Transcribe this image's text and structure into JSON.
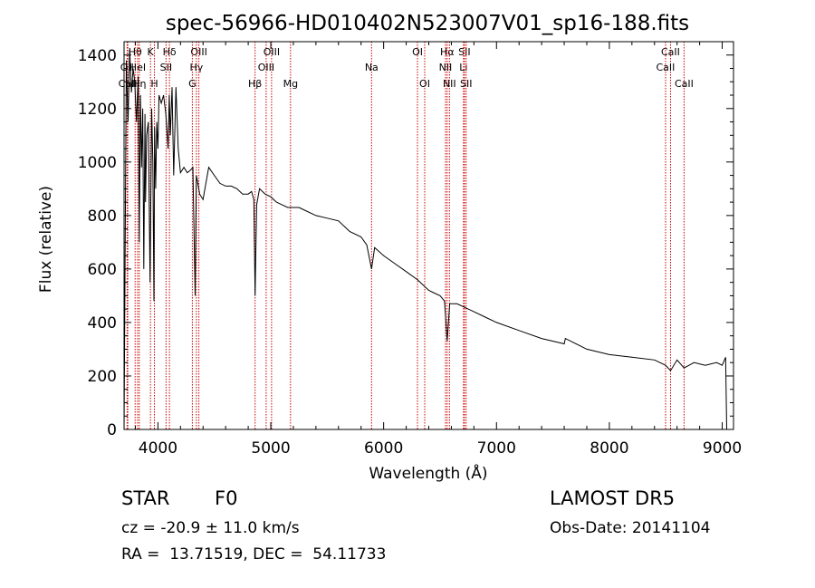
{
  "chart_data": {
    "type": "line",
    "title": "spec-56966-HD010402N523007V01_sp16-188.fits",
    "xlabel": "Wavelength (Å)",
    "ylabel": "Flux (relative)",
    "xlim": [
      3700,
      9100
    ],
    "ylim": [
      0,
      1450
    ],
    "x_ticks": [
      4000,
      5000,
      6000,
      7000,
      8000,
      9000
    ],
    "y_ticks": [
      0,
      200,
      400,
      600,
      800,
      1000,
      1200,
      1400
    ],
    "grid": false,
    "series": [
      {
        "color": "#000000",
        "x": [
          3700,
          3720,
          3735,
          3750,
          3765,
          3780,
          3795,
          3810,
          3825,
          3835,
          3845,
          3855,
          3865,
          3875,
          3885,
          3890,
          3900,
          3915,
          3930,
          3945,
          3955,
          3965,
          3970,
          3980,
          3990,
          4000,
          4010,
          4030,
          4050,
          4070,
          4090,
          4100,
          4110,
          4125,
          4140,
          4160,
          4180,
          4200,
          4230,
          4260,
          4290,
          4310,
          4330,
          4340,
          4350,
          4370,
          4400,
          4450,
          4500,
          4550,
          4600,
          4650,
          4700,
          4750,
          4800,
          4830,
          4850,
          4861,
          4875,
          4900,
          4950,
          5000,
          5050,
          5100,
          5150,
          5200,
          5250,
          5300,
          5400,
          5500,
          5600,
          5700,
          5800,
          5850,
          5893,
          5920,
          6000,
          6100,
          6200,
          6300,
          6400,
          6450,
          6500,
          6540,
          6563,
          6585,
          6650,
          6700,
          6800,
          6900,
          7000,
          7200,
          7400,
          7600,
          7610,
          7800,
          8000,
          8200,
          8400,
          8498,
          8542,
          8600,
          8662,
          8750,
          8850,
          8950,
          9000,
          9030,
          9040
        ],
        "y": [
          0,
          1380,
          1150,
          1420,
          1260,
          1350,
          1300,
          1150,
          1320,
          700,
          1250,
          980,
          1200,
          600,
          1180,
          850,
          1100,
          1150,
          550,
          1200,
          1000,
          480,
          1130,
          900,
          1150,
          1050,
          1250,
          1220,
          1250,
          1180,
          1050,
          1250,
          1100,
          1280,
          950,
          1280,
          1050,
          960,
          980,
          960,
          970,
          980,
          500,
          950,
          930,
          880,
          860,
          980,
          950,
          920,
          910,
          910,
          900,
          880,
          880,
          890,
          860,
          500,
          840,
          900,
          880,
          870,
          850,
          840,
          830,
          830,
          830,
          820,
          800,
          790,
          780,
          740,
          720,
          690,
          600,
          680,
          650,
          620,
          590,
          560,
          520,
          510,
          500,
          480,
          330,
          470,
          470,
          460,
          440,
          420,
          400,
          370,
          340,
          320,
          340,
          300,
          280,
          270,
          260,
          240,
          220,
          260,
          230,
          250,
          240,
          250,
          240,
          270,
          0
        ]
      }
    ],
    "lines": [
      {
        "label": "Hθ",
        "wavelength": 3798,
        "row": 1
      },
      {
        "label": "OII",
        "wavelength": 3727,
        "row": 2
      },
      {
        "label": "HeI",
        "wavelength": 3820,
        "row": 2
      },
      {
        "label": "CaII",
        "wavelength": 3733,
        "row": 3
      },
      {
        "label": "Hη",
        "wavelength": 3835,
        "row": 3
      },
      {
        "label": "K",
        "wavelength": 3934,
        "row": 1
      },
      {
        "label": "H",
        "wavelength": 3969,
        "row": 3
      },
      {
        "label": "Hδ",
        "wavelength": 4102,
        "row": 1
      },
      {
        "label": "SII",
        "wavelength": 4072,
        "row": 2
      },
      {
        "label": "OIII",
        "wavelength": 4363,
        "row": 1
      },
      {
        "label": "Hγ",
        "wavelength": 4341,
        "row": 2
      },
      {
        "label": "G",
        "wavelength": 4305,
        "row": 3
      },
      {
        "label": "Hβ",
        "wavelength": 4861,
        "row": 3
      },
      {
        "label": "OIII",
        "wavelength": 4959,
        "row": 2
      },
      {
        "label": "OIII",
        "wavelength": 5007,
        "row": 1
      },
      {
        "label": "Mg",
        "wavelength": 5175,
        "row": 3
      },
      {
        "label": "Na",
        "wavelength": 5893,
        "row": 2
      },
      {
        "label": "OI",
        "wavelength": 6300,
        "row": 1
      },
      {
        "label": "OI",
        "wavelength": 6364,
        "row": 3
      },
      {
        "label": "Hα",
        "wavelength": 6563,
        "row": 1
      },
      {
        "label": "NII",
        "wavelength": 6548,
        "row": 2
      },
      {
        "label": "NII",
        "wavelength": 6583,
        "row": 3
      },
      {
        "label": "SII",
        "wavelength": 6716,
        "row": 1
      },
      {
        "label": "Li",
        "wavelength": 6708,
        "row": 2
      },
      {
        "label": "SII",
        "wavelength": 6731,
        "row": 3
      },
      {
        "label": "CaII",
        "wavelength": 8542,
        "row": 1
      },
      {
        "label": "CaII",
        "wavelength": 8498,
        "row": 2
      },
      {
        "label": "CaII",
        "wavelength": 8662,
        "row": 3
      }
    ]
  },
  "footer": {
    "object_class": "STAR",
    "subclass": "F0",
    "survey": "LAMOST DR5",
    "redshift": "cz = -20.9 ± 11.0 km/s",
    "obs_date": "Obs-Date: 20141104",
    "coords": "RA =  13.71519, DEC =  54.11733"
  }
}
